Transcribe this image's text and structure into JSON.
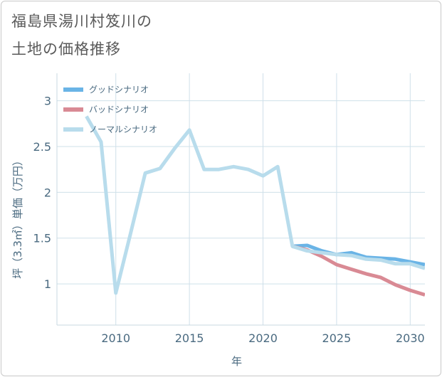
{
  "title_line1": "福島県湯川村笈川の",
  "title_line2": "土地の価格推移",
  "chart_data": {
    "type": "line",
    "xlabel": "年",
    "ylabel": "坪（3.3㎡）単価（万円）",
    "xlim": [
      2006,
      2031
    ],
    "ylim": [
      0.55,
      3.3
    ],
    "xticks": [
      2010,
      2015,
      2020,
      2025,
      2030
    ],
    "yticks": [
      1,
      1.5,
      2,
      2.5,
      3
    ],
    "ytick_labels": [
      "1",
      "1.5",
      "2",
      "2.5",
      "3"
    ],
    "series": [
      {
        "name": "グッドシナリオ",
        "color": "#6ab4e6",
        "x": [
          2022,
          2023,
          2024,
          2025,
          2026,
          2027,
          2028,
          2029,
          2030,
          2031
        ],
        "y": [
          1.41,
          1.42,
          1.36,
          1.32,
          1.34,
          1.29,
          1.28,
          1.27,
          1.24,
          1.21
        ]
      },
      {
        "name": "バッドシナリオ",
        "color": "#d98a94",
        "x": [
          2022,
          2023,
          2024,
          2025,
          2026,
          2027,
          2028,
          2029,
          2030,
          2031
        ],
        "y": [
          1.41,
          1.37,
          1.3,
          1.21,
          1.16,
          1.11,
          1.07,
          0.99,
          0.93,
          0.88
        ]
      },
      {
        "name": "ノーマルシナリオ",
        "color": "#b8dcec",
        "x": [
          2008,
          2009,
          2010,
          2011,
          2012,
          2013,
          2014,
          2015,
          2016,
          2017,
          2018,
          2019,
          2020,
          2021,
          2022,
          2023,
          2024,
          2025,
          2026,
          2027,
          2028,
          2029,
          2030,
          2031
        ],
        "y": [
          2.83,
          2.55,
          0.9,
          1.55,
          2.21,
          2.26,
          2.48,
          2.68,
          2.25,
          2.25,
          2.28,
          2.25,
          2.18,
          2.28,
          1.41,
          1.36,
          1.34,
          1.32,
          1.31,
          1.27,
          1.26,
          1.22,
          1.22,
          1.17
        ]
      }
    ]
  }
}
